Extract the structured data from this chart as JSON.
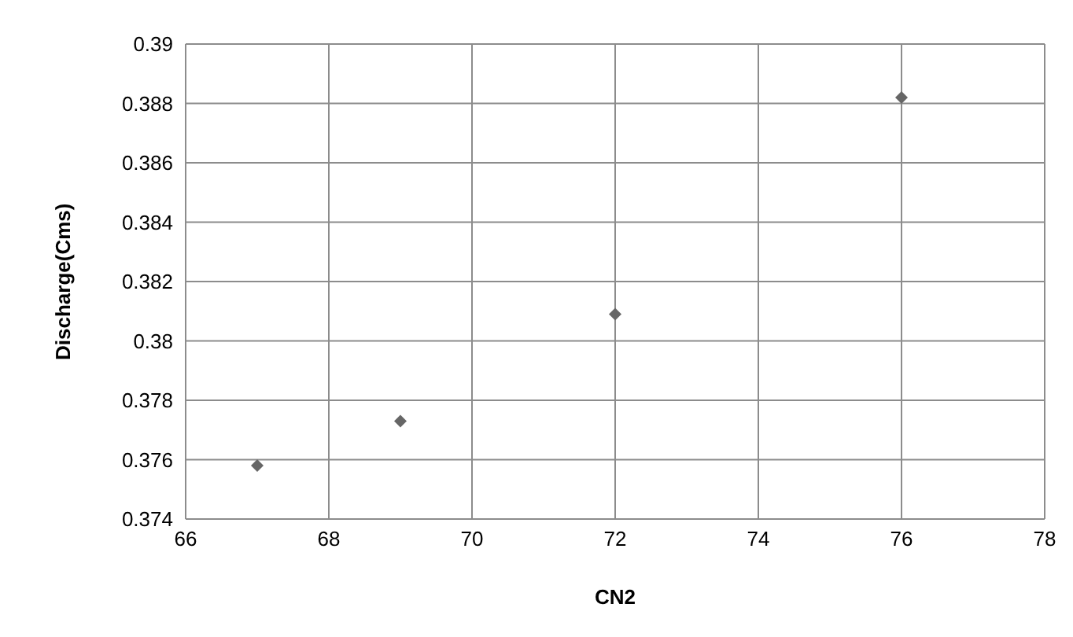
{
  "chart_data": {
    "type": "scatter",
    "xlabel": "CN2",
    "ylabel": "Discharge(Cms)",
    "x": [
      67,
      69,
      72,
      76
    ],
    "series": [
      {
        "color": "#666666",
        "values": [
          0.3758,
          0.3773,
          0.3809,
          0.3882
        ]
      }
    ],
    "xlim": [
      66,
      78
    ],
    "xticks": [
      66,
      68,
      70,
      72,
      74,
      76,
      78
    ],
    "ylim": [
      0.374,
      0.39
    ],
    "yticks": [
      0.374,
      0.376,
      0.378,
      0.38,
      0.382,
      0.384,
      0.386,
      0.388,
      0.39
    ],
    "grid": true,
    "marker": "diamond",
    "legend": false
  }
}
